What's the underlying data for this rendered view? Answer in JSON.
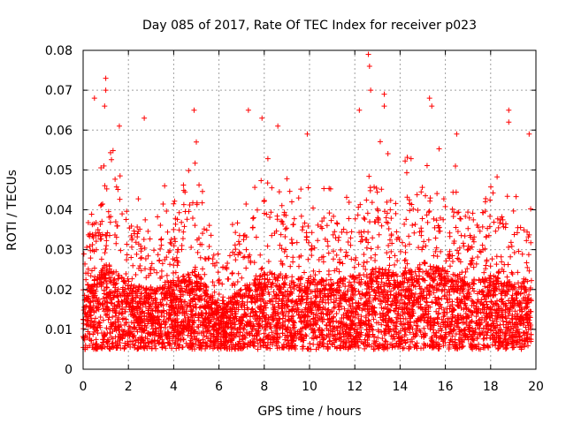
{
  "chart_data": {
    "type": "scatter",
    "title": "Day 085 of 2017, Rate Of TEC Index for receiver p023",
    "xlabel": "GPS time / hours",
    "ylabel": "ROTI / TECUs",
    "xlim": [
      0,
      20
    ],
    "ylim": [
      0,
      0.08
    ],
    "x_ticks": [
      "0",
      "2",
      "4",
      "6",
      "8",
      "10",
      "12",
      "14",
      "16",
      "18",
      "20"
    ],
    "y_ticks": [
      "0",
      "0.01",
      "0.02",
      "0.03",
      "0.04",
      "0.05",
      "0.06",
      "0.07",
      "0.08"
    ],
    "grid": true,
    "marker": "plus",
    "series_color": "#ff0000",
    "density_profile_x": [
      0.0,
      1.0,
      2.0,
      3.0,
      4.0,
      5.0,
      6.0,
      7.0,
      8.0,
      9.0,
      10.0,
      11.0,
      12.0,
      13.0,
      14.0,
      15.0,
      16.0,
      17.0,
      18.0,
      19.0,
      19.8
    ],
    "density_profile_typical_y": [
      0.012,
      0.02,
      0.015,
      0.014,
      0.016,
      0.018,
      0.01,
      0.014,
      0.018,
      0.017,
      0.016,
      0.016,
      0.017,
      0.02,
      0.017,
      0.02,
      0.018,
      0.016,
      0.017,
      0.015,
      0.014
    ],
    "notable_points": [
      {
        "x": 0.5,
        "y": 0.068
      },
      {
        "x": 1.0,
        "y": 0.073
      },
      {
        "x": 1.0,
        "y": 0.07
      },
      {
        "x": 0.95,
        "y": 0.066
      },
      {
        "x": 1.6,
        "y": 0.061
      },
      {
        "x": 2.7,
        "y": 0.063
      },
      {
        "x": 3.6,
        "y": 0.046
      },
      {
        "x": 4.9,
        "y": 0.065
      },
      {
        "x": 5.0,
        "y": 0.057
      },
      {
        "x": 7.3,
        "y": 0.065
      },
      {
        "x": 7.9,
        "y": 0.063
      },
      {
        "x": 8.6,
        "y": 0.061
      },
      {
        "x": 9.9,
        "y": 0.059
      },
      {
        "x": 12.2,
        "y": 0.065
      },
      {
        "x": 12.6,
        "y": 0.079
      },
      {
        "x": 12.65,
        "y": 0.076
      },
      {
        "x": 12.7,
        "y": 0.07
      },
      {
        "x": 13.3,
        "y": 0.069
      },
      {
        "x": 13.3,
        "y": 0.066
      },
      {
        "x": 15.3,
        "y": 0.068
      },
      {
        "x": 15.4,
        "y": 0.066
      },
      {
        "x": 16.5,
        "y": 0.059
      },
      {
        "x": 18.8,
        "y": 0.065
      },
      {
        "x": 18.8,
        "y": 0.062
      },
      {
        "x": 19.7,
        "y": 0.059
      }
    ]
  }
}
